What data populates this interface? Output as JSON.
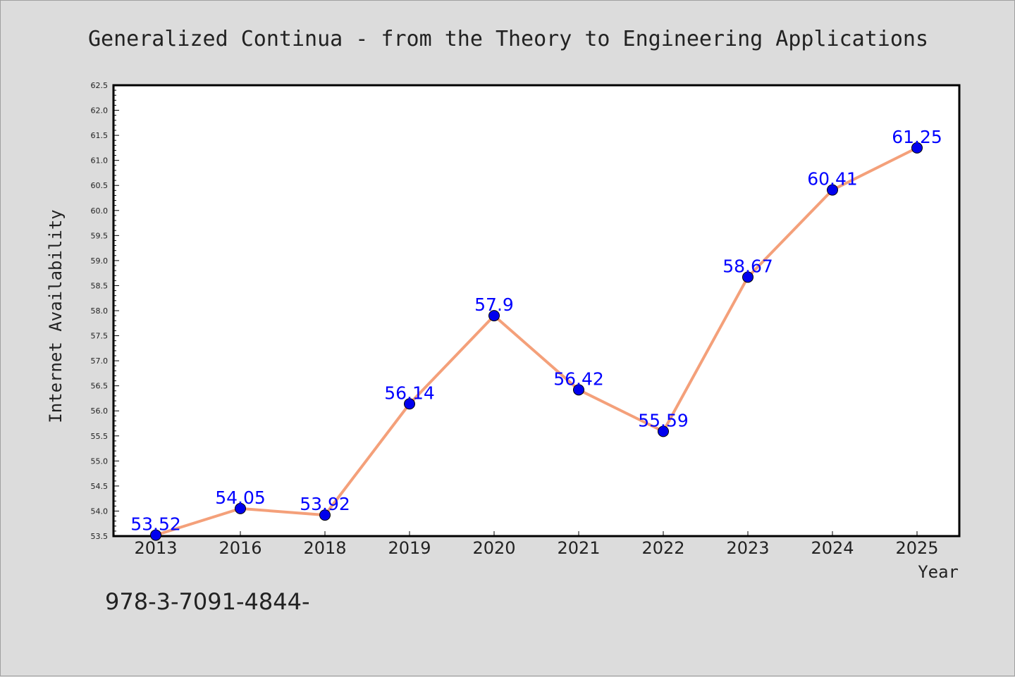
{
  "chart_data": {
    "type": "line",
    "title": "Generalized Continua - from the Theory to Engineering Applications",
    "xlabel": "Year",
    "ylabel": "Internet Availability",
    "categories": [
      "2013",
      "2016",
      "2018",
      "2019",
      "2020",
      "2021",
      "2022",
      "2023",
      "2024",
      "2025"
    ],
    "series": [
      {
        "values": [
          53.52,
          54.05,
          53.92,
          56.14,
          57.9,
          56.42,
          55.59,
          58.67,
          60.41,
          61.25
        ],
        "labels": [
          "53.52",
          "54.05",
          "53.92",
          "56.14",
          "57.9",
          "56.42",
          "55.59",
          "58.67",
          "60.41",
          "61.25"
        ]
      }
    ],
    "ylim": [
      53.5,
      62.5
    ],
    "yticks": [
      "53.5",
      "54.0",
      "54.5",
      "55.0",
      "55.5",
      "56.0",
      "56.5",
      "57.0",
      "57.5",
      "58.0",
      "58.5",
      "59.0",
      "59.5",
      "60.0",
      "60.5",
      "61.0",
      "61.5",
      "62.0",
      "62.5"
    ],
    "grid": false,
    "colors": {
      "line": "#f4a07a",
      "marker": "#0000ee",
      "label": "#0000ff",
      "background": "#dcdcdc",
      "plot_background": "#ffffff"
    }
  },
  "footer": {
    "text": "978-3-7091-4844-"
  }
}
